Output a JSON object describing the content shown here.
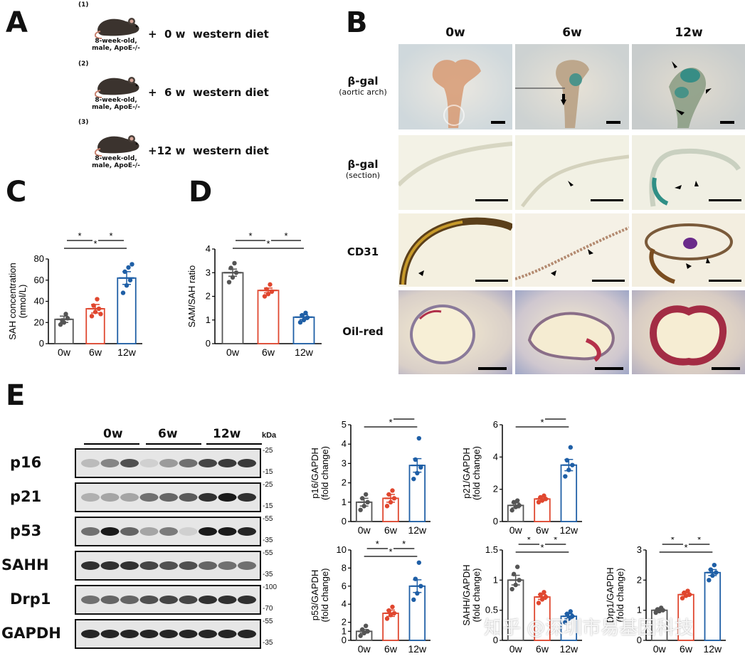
{
  "panels": {
    "A": "A",
    "B": "B",
    "C": "C",
    "D": "D",
    "E": "E"
  },
  "panelA": {
    "groups": [
      {
        "num": "(1)",
        "mouse": "8-week-old, male, ApoE-/-",
        "diet": "+  0 w  western diet"
      },
      {
        "num": "(2)",
        "mouse": "8-week-old, male, ApoE-/-",
        "diet": "+  6 w  western diet"
      },
      {
        "num": "(3)",
        "mouse": "8-week-old, male, ApoE-/-",
        "diet": "+12 w  western diet"
      }
    ]
  },
  "panelB": {
    "columns": [
      "0w",
      "6w",
      "12w"
    ],
    "rows": [
      {
        "label": "β-gal",
        "sub": "(aortic arch)"
      },
      {
        "label": "β-gal",
        "sub": "(section)"
      },
      {
        "label": "CD31",
        "sub": ""
      },
      {
        "label": "Oil-red",
        "sub": ""
      }
    ]
  },
  "panelE": {
    "header": [
      "0w",
      "6w",
      "12w"
    ],
    "kda_label": "kDa",
    "blots": [
      {
        "name": "p16",
        "markers": [
          "-25",
          "-15"
        ]
      },
      {
        "name": "p21",
        "markers": [
          "-25",
          "-15"
        ]
      },
      {
        "name": "p53",
        "markers": [
          "-55",
          "-35"
        ]
      },
      {
        "name": "SAHH",
        "markers": [
          "-55",
          "-35"
        ]
      },
      {
        "name": "Drp1",
        "markers": [
          "-100",
          "-70"
        ]
      },
      {
        "name": "GAPDH",
        "markers": [
          "-55",
          "-35"
        ]
      }
    ]
  },
  "watermark": "知乎 @深圳市易基因科技",
  "chart_data": [
    {
      "id": "C",
      "type": "bar",
      "categories": [
        "0w",
        "6w",
        "12w"
      ],
      "values": [
        23,
        33,
        62
      ],
      "errors": [
        3,
        4,
        6
      ],
      "points": [
        [
          18,
          20,
          24,
          22,
          28
        ],
        [
          26,
          30,
          33,
          36,
          42,
          28
        ],
        [
          48,
          55,
          60,
          68,
          72,
          75
        ]
      ],
      "ylabel": "SAH concentration (nmol/L)",
      "ylim": [
        0,
        80
      ],
      "yticks": [
        0,
        20,
        40,
        60,
        80
      ],
      "significance": [
        {
          "from": 0,
          "to": 1,
          "label": "*"
        },
        {
          "from": 1,
          "to": 2,
          "label": "*"
        },
        {
          "from": 0,
          "to": 2,
          "label": "*"
        }
      ]
    },
    {
      "id": "D",
      "type": "bar",
      "categories": [
        "0w",
        "6w",
        "12w"
      ],
      "values": [
        3.0,
        2.25,
        1.12
      ],
      "errors": [
        0.15,
        0.1,
        0.1
      ],
      "points": [
        [
          2.6,
          2.8,
          3.0,
          3.2,
          3.4
        ],
        [
          2.0,
          2.1,
          2.2,
          2.3,
          2.5
        ],
        [
          0.9,
          1.0,
          1.1,
          1.2,
          1.3
        ]
      ],
      "ylabel": "SAM/SAH ratio",
      "ylim": [
        0,
        4
      ],
      "yticks": [
        0,
        1,
        2,
        3,
        4
      ],
      "significance": [
        {
          "from": 0,
          "to": 1,
          "label": "*"
        },
        {
          "from": 1,
          "to": 2,
          "label": "*"
        },
        {
          "from": 0,
          "to": 2,
          "label": "*"
        }
      ]
    },
    {
      "id": "E1",
      "type": "bar",
      "categories": [
        "0w",
        "6w",
        "12w"
      ],
      "values": [
        1.0,
        1.2,
        2.9
      ],
      "errors": [
        0.2,
        0.2,
        0.35
      ],
      "points": [
        [
          0.6,
          0.8,
          1.0,
          1.2,
          1.4
        ],
        [
          0.8,
          1.0,
          1.2,
          1.4,
          1.6
        ],
        [
          2.2,
          2.5,
          2.8,
          3.2,
          4.3
        ]
      ],
      "ylabel": "p16/GAPDH (fold change)",
      "ylim": [
        0,
        5
      ],
      "yticks": [
        0,
        1,
        2,
        3,
        4,
        5
      ],
      "significance": [
        {
          "from": 1,
          "to": 2,
          "label": "*"
        },
        {
          "from": 0,
          "to": 2,
          "label": "*"
        }
      ]
    },
    {
      "id": "E2",
      "type": "bar",
      "categories": [
        "0w",
        "6w",
        "12w"
      ],
      "values": [
        1.0,
        1.4,
        3.5
      ],
      "errors": [
        0.15,
        0.1,
        0.35
      ],
      "points": [
        [
          0.7,
          0.9,
          1.0,
          1.2,
          1.3
        ],
        [
          1.2,
          1.3,
          1.4,
          1.5,
          1.6
        ],
        [
          2.8,
          3.2,
          3.5,
          3.8,
          4.6
        ]
      ],
      "ylabel": "p21/GAPDH (fold change)",
      "ylim": [
        0,
        6
      ],
      "yticks": [
        0,
        2,
        4,
        6
      ],
      "significance": [
        {
          "from": 1,
          "to": 2,
          "label": "*"
        },
        {
          "from": 0,
          "to": 2,
          "label": "*"
        }
      ]
    },
    {
      "id": "E3",
      "type": "bar",
      "categories": [
        "0w",
        "6w",
        "12w"
      ],
      "values": [
        1.0,
        3.0,
        6.0
      ],
      "errors": [
        0.2,
        0.35,
        0.7
      ],
      "points": [
        [
          0.5,
          0.8,
          1.0,
          1.2,
          1.6
        ],
        [
          2.4,
          2.8,
          3.0,
          3.3,
          3.7
        ],
        [
          4.5,
          5.2,
          6.0,
          6.8,
          8.6
        ]
      ],
      "ylabel": "p53/GAPDH (fold change)",
      "ylim": [
        0,
        10
      ],
      "yticks": [
        0,
        1,
        2,
        4,
        6,
        8,
        10
      ],
      "significance": [
        {
          "from": 0,
          "to": 1,
          "label": "*"
        },
        {
          "from": 1,
          "to": 2,
          "label": "*"
        },
        {
          "from": 0,
          "to": 2,
          "label": "*"
        }
      ]
    },
    {
      "id": "E4",
      "type": "bar",
      "categories": [
        "0w",
        "6w",
        "12w"
      ],
      "values": [
        1.0,
        0.72,
        0.4
      ],
      "errors": [
        0.08,
        0.04,
        0.04
      ],
      "points": [
        [
          0.85,
          0.92,
          1.0,
          1.1,
          1.22
        ],
        [
          0.62,
          0.68,
          0.72,
          0.76,
          0.8
        ],
        [
          0.3,
          0.36,
          0.4,
          0.44,
          0.48
        ]
      ],
      "ylabel": "SAHH/GAPDH (fold change)",
      "ylim": [
        0,
        1.5
      ],
      "yticks": [
        0.0,
        0.5,
        1.0,
        1.5
      ],
      "significance": [
        {
          "from": 0,
          "to": 1,
          "label": "*"
        },
        {
          "from": 1,
          "to": 2,
          "label": "*"
        },
        {
          "from": 0,
          "to": 2,
          "label": "*"
        }
      ]
    },
    {
      "id": "E5",
      "type": "bar",
      "categories": [
        "0w",
        "6w",
        "12w"
      ],
      "values": [
        1.0,
        1.52,
        2.25
      ],
      "errors": [
        0.04,
        0.06,
        0.1
      ],
      "points": [
        [
          0.92,
          0.97,
          1.0,
          1.03,
          1.08
        ],
        [
          1.4,
          1.48,
          1.52,
          1.58,
          1.64
        ],
        [
          2.0,
          2.15,
          2.25,
          2.35,
          2.5
        ]
      ],
      "ylabel": "Drp1/GAPDH (fold change)",
      "ylim": [
        0,
        3
      ],
      "yticks": [
        0,
        1,
        2,
        3
      ],
      "significance": [
        {
          "from": 0,
          "to": 1,
          "label": "*"
        },
        {
          "from": 1,
          "to": 2,
          "label": "*"
        },
        {
          "from": 0,
          "to": 2,
          "label": "*"
        }
      ]
    }
  ],
  "colors": {
    "bar0": "#555555",
    "bar1": "#e0472f",
    "bar2": "#1f5fa6"
  }
}
